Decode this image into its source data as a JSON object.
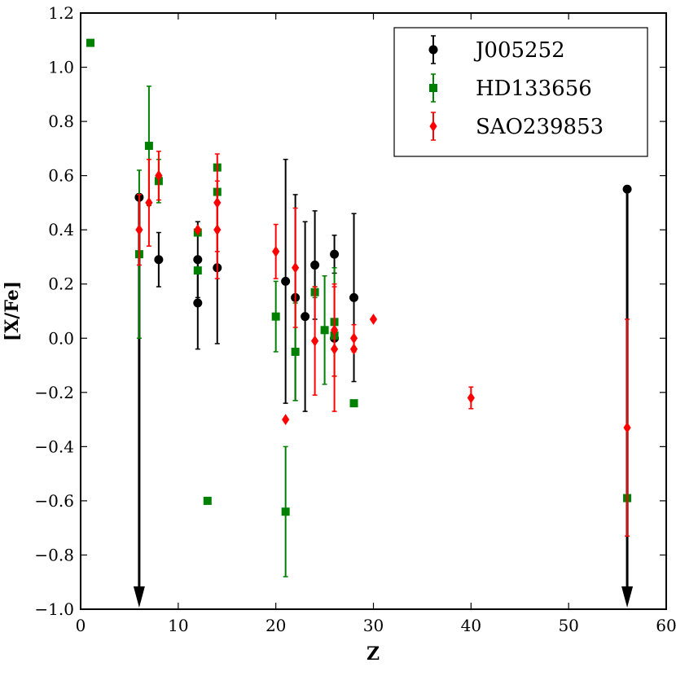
{
  "chart_data": {
    "type": "scatter",
    "xlabel": "Z",
    "ylabel": "[X/Fe]",
    "xlim": [
      0,
      60
    ],
    "ylim": [
      -1.0,
      1.2
    ],
    "xticks": [
      0,
      10,
      20,
      30,
      40,
      50,
      60
    ],
    "xtick_labels": [
      "0",
      "10",
      "20",
      "30",
      "40",
      "50",
      "60"
    ],
    "yticks": [
      -1.0,
      -0.8,
      -0.6,
      -0.4,
      -0.2,
      0.0,
      0.2,
      0.4,
      0.6,
      0.8,
      1.0,
      1.2
    ],
    "ytick_labels": [
      "−1.0",
      "−0.8",
      "−0.6",
      "−0.4",
      "−0.2",
      "0.0",
      "0.2",
      "0.4",
      "0.6",
      "0.8",
      "1.0",
      "1.2"
    ],
    "grid": false,
    "legend_position": "top-right",
    "series": [
      {
        "name": "J005252",
        "color": "#000000",
        "marker": "circle",
        "points": [
          {
            "x": 6,
            "y": 0.52,
            "err": 0.0,
            "upper_limit": true
          },
          {
            "x": 8,
            "y": 0.29,
            "err": 0.1
          },
          {
            "x": 12,
            "y": 0.29,
            "err": 0.14
          },
          {
            "x": 12,
            "y": 0.13,
            "err": 0.17
          },
          {
            "x": 14,
            "y": 0.26,
            "err": 0.28
          },
          {
            "x": 21,
            "y": 0.21,
            "err": 0.45
          },
          {
            "x": 22,
            "y": 0.15,
            "err": 0.38
          },
          {
            "x": 23,
            "y": 0.08,
            "err": 0.35
          },
          {
            "x": 24,
            "y": 0.27,
            "err": 0.2
          },
          {
            "x": 26,
            "y": 0.31,
            "err": 0.07
          },
          {
            "x": 26,
            "y": 0.0,
            "err": 0.0
          },
          {
            "x": 28,
            "y": 0.15,
            "err": 0.31
          },
          {
            "x": 56,
            "y": 0.55,
            "err": 0.0,
            "upper_limit": true
          }
        ]
      },
      {
        "name": "HD133656",
        "color": "#008000",
        "marker": "square",
        "points": [
          {
            "x": 1,
            "y": 1.09,
            "err": 0.0
          },
          {
            "x": 6,
            "y": 0.31,
            "err": 0.31
          },
          {
            "x": 7,
            "y": 0.71,
            "err": 0.22
          },
          {
            "x": 8,
            "y": 0.58,
            "err": 0.08
          },
          {
            "x": 12,
            "y": 0.39,
            "err": 0.0
          },
          {
            "x": 12,
            "y": 0.25,
            "err": 0.0
          },
          {
            "x": 13,
            "y": -0.6,
            "err": 0.0
          },
          {
            "x": 14,
            "y": 0.63,
            "err": 0.0
          },
          {
            "x": 14,
            "y": 0.54,
            "err": 0.0
          },
          {
            "x": 20,
            "y": 0.08,
            "err": 0.13
          },
          {
            "x": 21,
            "y": -0.64,
            "err": 0.24
          },
          {
            "x": 22,
            "y": -0.05,
            "err": 0.18
          },
          {
            "x": 24,
            "y": 0.17,
            "err": 0.02
          },
          {
            "x": 25,
            "y": 0.03,
            "err": 0.2
          },
          {
            "x": 26,
            "y": 0.06,
            "err": 0.2
          },
          {
            "x": 26,
            "y": 0.01,
            "err": 0.0
          },
          {
            "x": 28,
            "y": -0.24,
            "err": 0.0
          },
          {
            "x": 56,
            "y": -0.59,
            "err": 0.0
          }
        ]
      },
      {
        "name": "SAO239853",
        "color": "#ff0000",
        "marker": "diamond",
        "points": [
          {
            "x": 6,
            "y": 0.4,
            "err": 0.13
          },
          {
            "x": 7,
            "y": 0.5,
            "err": 0.16
          },
          {
            "x": 8,
            "y": 0.6,
            "err": 0.09
          },
          {
            "x": 12,
            "y": 0.4,
            "err": 0.0
          },
          {
            "x": 14,
            "y": 0.5,
            "err": 0.18
          },
          {
            "x": 14,
            "y": 0.4,
            "err": 0.18
          },
          {
            "x": 20,
            "y": 0.32,
            "err": 0.1
          },
          {
            "x": 21,
            "y": -0.3,
            "err": 0.0
          },
          {
            "x": 22,
            "y": 0.26,
            "err": 0.22
          },
          {
            "x": 24,
            "y": -0.01,
            "err": 0.2
          },
          {
            "x": 26,
            "y": 0.03,
            "err": 0.17
          },
          {
            "x": 26,
            "y": -0.04,
            "err": 0.23
          },
          {
            "x": 28,
            "y": 0.0,
            "err": 0.05
          },
          {
            "x": 28,
            "y": -0.04,
            "err": 0.0
          },
          {
            "x": 30,
            "y": 0.07,
            "err": 0.0
          },
          {
            "x": 40,
            "y": -0.22,
            "err": 0.04
          },
          {
            "x": 56,
            "y": -0.33,
            "err": 0.4
          }
        ]
      }
    ]
  }
}
